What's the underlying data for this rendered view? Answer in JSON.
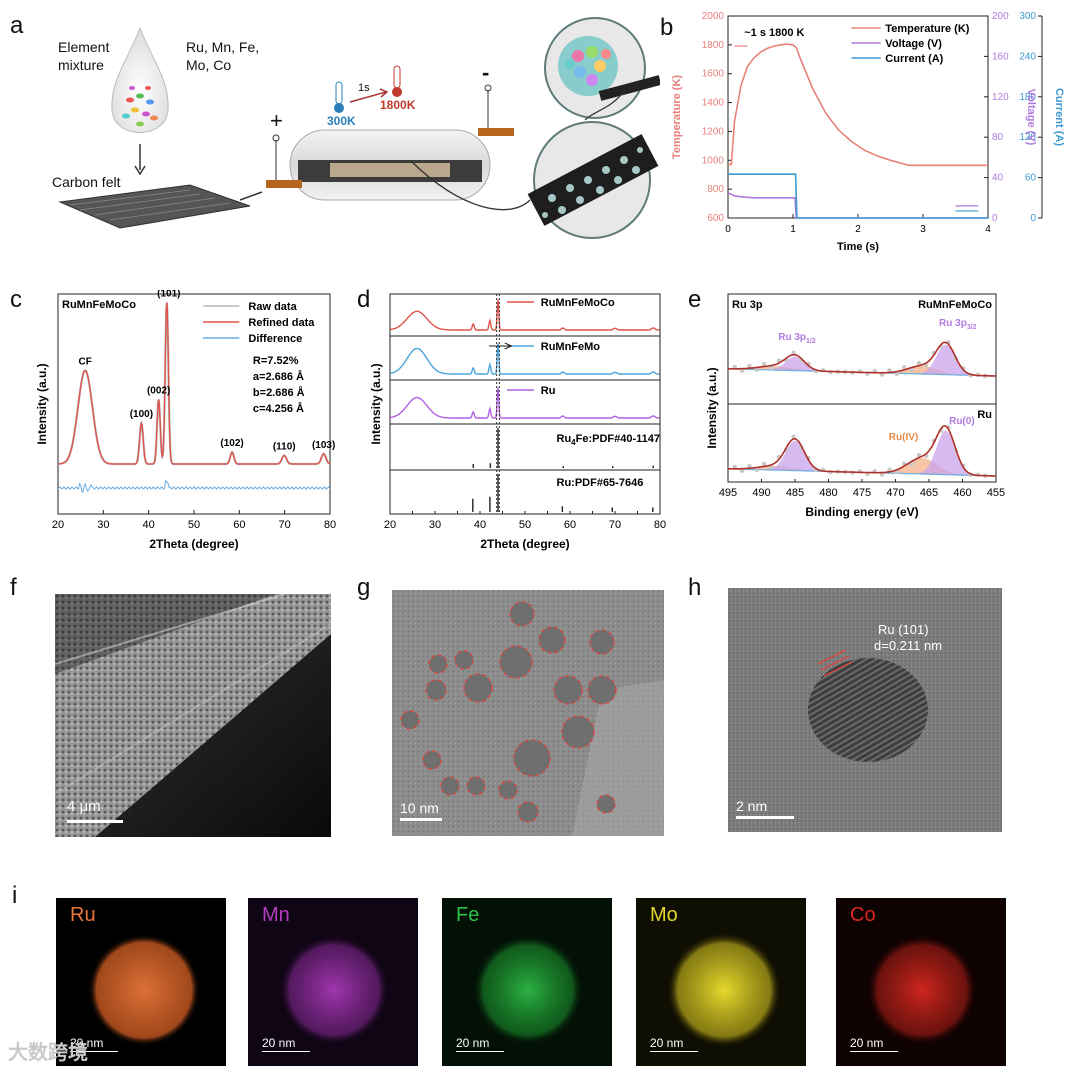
{
  "figure": {
    "panel_labels": {
      "a": "a",
      "b": "b",
      "c": "c",
      "d": "d",
      "e": "e",
      "f": "f",
      "g": "g",
      "h": "h",
      "i": "i"
    },
    "watermark": "大数跨境"
  },
  "panel_a": {
    "element_mixture": "Element\nmixture",
    "elements": "Ru, Mn, Fe,\nMo, Co",
    "carbon_felt": "Carbon felt",
    "plus": "+",
    "minus": "-",
    "t_low": "300K",
    "t_high": "1800K",
    "time": "1s",
    "colors": {
      "cold": "#2a7fb8",
      "hot": "#c0392b",
      "copper": "#b5651d"
    }
  },
  "chart_data": [
    {
      "id": "b",
      "type": "line",
      "annotation": "~1 s 1800 K",
      "xlabel": "Time (s)",
      "ylabel_left": "Temperature (K)",
      "ylabel_right1": "Voltage (V)",
      "ylabel_right2": "Current (A)",
      "xlim": [
        0,
        4
      ],
      "xticks": [
        "0",
        "1",
        "2",
        "3",
        "4"
      ],
      "ylim_left": [
        600,
        2000
      ],
      "yticks_left": [
        "600",
        "800",
        "1000",
        "1200",
        "1400",
        "1600",
        "1800",
        "2000"
      ],
      "ylim_right1": [
        0,
        200
      ],
      "yticks_right1": [
        "0",
        "40",
        "80",
        "120",
        "160",
        "200"
      ],
      "ylim_right2": [
        0,
        300
      ],
      "yticks_right2": [
        "0",
        "60",
        "120",
        "180",
        "240",
        "300"
      ],
      "legend": [
        "Temperature (K)",
        "Voltage (V)",
        "Current (A)"
      ],
      "colors": {
        "temp": "#e8817a",
        "volt": "#b07ae0",
        "curr": "#3d9ad1"
      },
      "series": [
        {
          "name": "Temperature (K)",
          "axis": "left",
          "x": [
            0,
            0.05,
            0.1,
            0.2,
            0.3,
            0.4,
            0.5,
            0.6,
            0.7,
            0.8,
            0.9,
            1.0,
            1.05,
            1.1,
            1.3,
            1.5,
            1.7,
            1.9,
            2.1,
            2.3,
            2.5,
            2.7,
            2.78,
            3.0,
            3.5,
            4.0
          ],
          "y": [
            970,
            970,
            1270,
            1520,
            1650,
            1710,
            1750,
            1775,
            1790,
            1800,
            1805,
            1800,
            1780,
            1720,
            1500,
            1330,
            1210,
            1130,
            1070,
            1030,
            1000,
            975,
            965,
            965,
            965,
            965
          ]
        },
        {
          "name": "Voltage (V)",
          "axis": "right1",
          "x": [
            0,
            0.1,
            0.2,
            0.4,
            0.6,
            0.8,
            1.0,
            1.03,
            1.05,
            2,
            3,
            4
          ],
          "y": [
            25,
            22,
            21,
            20,
            20,
            20,
            20,
            20,
            0,
            0,
            0,
            0
          ]
        },
        {
          "name": "Current (A)",
          "axis": "right2",
          "x": [
            0,
            0.2,
            0.5,
            0.8,
            1.0,
            1.04,
            1.06,
            2,
            3,
            4
          ],
          "y": [
            65,
            65,
            65,
            65,
            65,
            65,
            0,
            0,
            0,
            0
          ]
        }
      ]
    },
    {
      "id": "c",
      "type": "line",
      "title": "RuMnFeMoCo",
      "xlabel": "2Theta (degree)",
      "ylabel": "Intensity (a.u.)",
      "xlim": [
        20,
        80
      ],
      "xticks": [
        "20",
        "30",
        "40",
        "50",
        "60",
        "70",
        "80"
      ],
      "legend": [
        "Raw data",
        "Refined data",
        "Difference"
      ],
      "colors": {
        "raw": "#b7b7b7",
        "refined": "#e0524a",
        "diff": "#6aaee3"
      },
      "annotations": [
        "R=7.52%",
        "a=2.686 Å",
        "b=2.686 Å",
        "c=4.256 Å"
      ],
      "peaks": [
        {
          "label": "CF",
          "x": 26
        },
        {
          "label": "(100)",
          "x": 38.4
        },
        {
          "label": "(002)",
          "x": 42.2
        },
        {
          "label": "(101)",
          "x": 44.0
        },
        {
          "label": "(102)",
          "x": 58.4
        },
        {
          "label": "(110)",
          "x": 69.9
        },
        {
          "label": "(103)",
          "x": 78.6
        }
      ]
    },
    {
      "id": "d",
      "type": "line",
      "xlabel": "2Theta (degree)",
      "ylabel": "Intensity (a.u.)",
      "xlim": [
        20,
        80
      ],
      "xticks": [
        "20",
        "25",
        "30",
        "35",
        "40",
        "45",
        "50",
        "55",
        "60",
        "65",
        "70",
        "75",
        "80"
      ],
      "series": [
        {
          "name": "RuMnFeMoCo",
          "color": "#e0524a"
        },
        {
          "name": "RuMnFeMo",
          "color": "#4aa5dc"
        },
        {
          "name": "Ru",
          "color": "#b15fe0"
        }
      ],
      "reference_1": {
        "label_main": "Ru",
        "label_sub": "4",
        "label_rest": "Fe:PDF#40-1147",
        "lines": [
          38.5,
          42.3,
          44.0,
          58.5,
          69.5,
          78.5
        ],
        "heights": [
          0.1,
          0.12,
          1.0,
          0.05,
          0.05,
          0.06
        ]
      },
      "reference_2": {
        "label": "Ru:PDF#65-7646",
        "lines": [
          38.4,
          42.2,
          44.0,
          58.3,
          69.4,
          78.4
        ],
        "heights": [
          0.35,
          0.4,
          1.0,
          0.15,
          0.12,
          0.12
        ]
      }
    },
    {
      "id": "e",
      "type": "line",
      "title_left": "Ru 3p",
      "title_right": "RuMnFeMoCo",
      "lower_title": "Ru",
      "xlabel": "Binding energy (eV)",
      "ylabel": "Intensity (a.u.)",
      "xlim": [
        495,
        455
      ],
      "xticks": [
        "495",
        "490",
        "485",
        "480",
        "475",
        "470",
        "465",
        "460",
        "455"
      ],
      "labels": {
        "p12": "Ru 3p",
        "p12_sub": "1/2",
        "p32": "Ru 3p",
        "p32_sub": "3/2",
        "ru4": "Ru(IV)",
        "ru0": "Ru(0)"
      },
      "colors": {
        "fit": "#b0302a",
        "ru0": "#c9a3ea",
        "ru4": "#f4b08a",
        "base": "#6aaee3",
        "raw": "#c8c8c8",
        "label_purple": "#b07ae0",
        "label_orange": "#e88c4a"
      }
    }
  ],
  "micrographs": {
    "f_scale": "4 μm",
    "g_scale": "10 nm",
    "h_scale": "2 nm",
    "h_label1": "Ru (101)",
    "h_label2": "d=0.211 nm"
  },
  "eds": [
    {
      "name": "Ru",
      "color": "#e9763a",
      "scale": "20 nm"
    },
    {
      "name": "Mn",
      "color": "#b43cc4",
      "scale": "20 nm"
    },
    {
      "name": "Fe",
      "color": "#2fc44a",
      "scale": "20 nm"
    },
    {
      "name": "Mo",
      "color": "#e3d62a",
      "scale": "20 nm"
    },
    {
      "name": "Co",
      "color": "#d9281f",
      "scale": "20 nm"
    }
  ]
}
